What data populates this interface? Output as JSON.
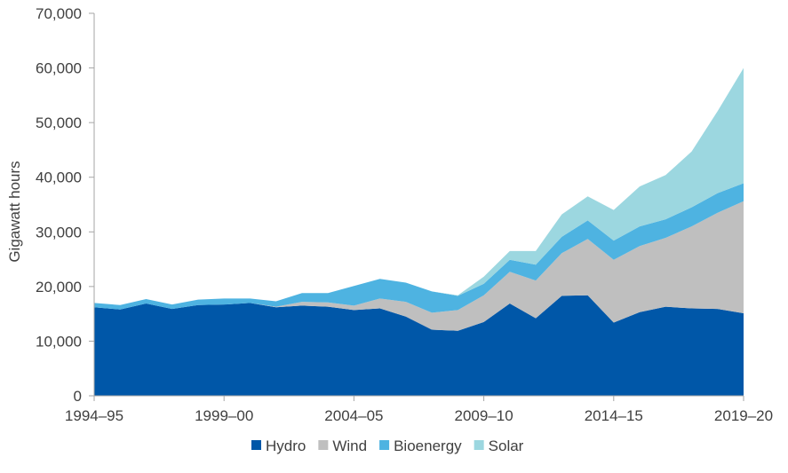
{
  "chart_data": {
    "type": "area",
    "stacked": true,
    "title": "",
    "xlabel": "",
    "ylabel": "Gigawatt hours",
    "ylim": [
      0,
      70000
    ],
    "yticks": [
      0,
      10000,
      20000,
      30000,
      40000,
      50000,
      60000,
      70000
    ],
    "ytick_labels": [
      "0",
      "10,000",
      "20,000",
      "30,000",
      "40,000",
      "50,000",
      "60,000",
      "70,000"
    ],
    "x_tick_labels": [
      "1994–95",
      "1999–00",
      "2004–05",
      "2009–10",
      "2014–15",
      "2019–20"
    ],
    "x_tick_index": [
      0,
      5,
      10,
      15,
      20,
      25
    ],
    "grid": false,
    "legend": "bottom",
    "categories": [
      "1994–95",
      "1995–96",
      "1996–97",
      "1997–98",
      "1998–99",
      "1999–00",
      "2000–01",
      "2001–02",
      "2002–03",
      "2003–04",
      "2004–05",
      "2005–06",
      "2006–07",
      "2007–08",
      "2008–09",
      "2009–10",
      "2010–11",
      "2011–12",
      "2012–13",
      "2013–14",
      "2014–15",
      "2015–16",
      "2016–17",
      "2017–18",
      "2018–19",
      "2019–20"
    ],
    "series": [
      {
        "name": "Hydro",
        "color": "#0057A8",
        "values": [
          16200,
          15800,
          16900,
          15900,
          16600,
          16700,
          17000,
          16200,
          16500,
          16300,
          15700,
          16000,
          14500,
          12100,
          11900,
          13500,
          16900,
          14200,
          18300,
          18400,
          13400,
          15300,
          16300,
          16000,
          15900,
          15100
        ]
      },
      {
        "name": "Wind",
        "color": "#BFBFBF",
        "values": [
          0,
          0,
          0,
          0,
          0,
          0,
          0,
          100,
          700,
          800,
          800,
          1800,
          2700,
          3100,
          3800,
          4900,
          5800,
          6900,
          7800,
          10300,
          11500,
          12100,
          12600,
          15000,
          17600,
          20500
        ]
      },
      {
        "name": "Bioenergy",
        "color": "#4EB3E1",
        "values": [
          800,
          800,
          800,
          800,
          1000,
          1100,
          800,
          1000,
          1600,
          1700,
          3600,
          3600,
          3500,
          3900,
          2600,
          2100,
          2200,
          2900,
          3000,
          3400,
          3500,
          3600,
          3400,
          3500,
          3600,
          3300
        ]
      },
      {
        "name": "Solar",
        "color": "#9CD7E0",
        "values": [
          0,
          0,
          0,
          0,
          0,
          0,
          0,
          0,
          0,
          0,
          0,
          0,
          0,
          0,
          100,
          1300,
          1600,
          2500,
          4100,
          4400,
          5600,
          7300,
          8100,
          10200,
          15000,
          21100
        ]
      }
    ]
  }
}
